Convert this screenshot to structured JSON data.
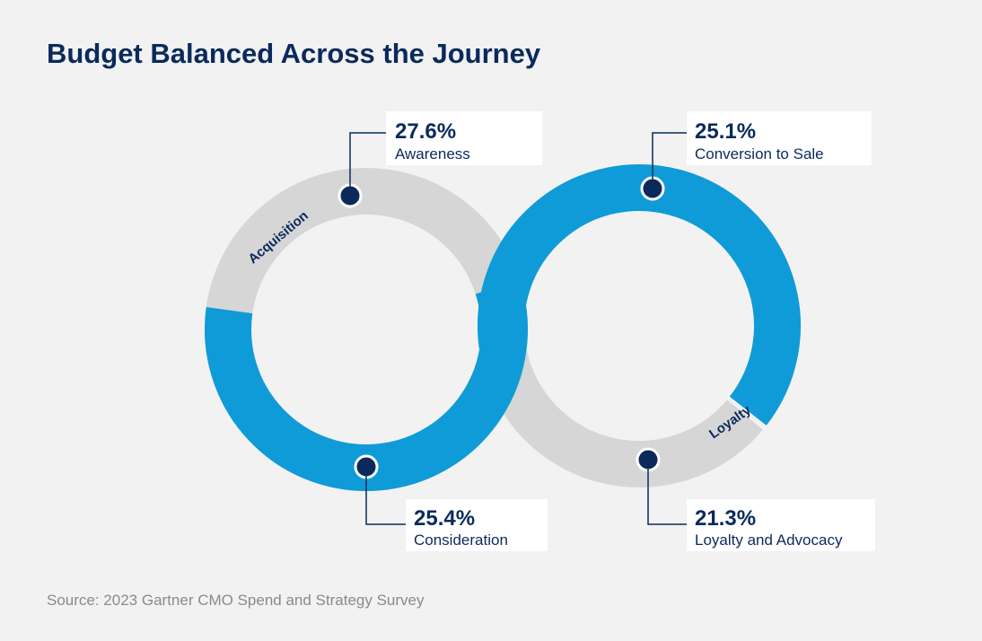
{
  "title": "Budget Balanced Across the Journey",
  "rings": [
    {
      "label": "Acquisition"
    },
    {
      "label": "Loyalty"
    }
  ],
  "stages": [
    {
      "value": "27.6%",
      "label": "Awareness"
    },
    {
      "value": "25.1%",
      "label": "Conversion to Sale"
    },
    {
      "value": "25.4%",
      "label": "Consideration"
    },
    {
      "value": "21.3%",
      "label": "Loyalty and Advocacy"
    }
  ],
  "source": "Source: 2023 Gartner CMO Spend and Strategy Survey"
}
